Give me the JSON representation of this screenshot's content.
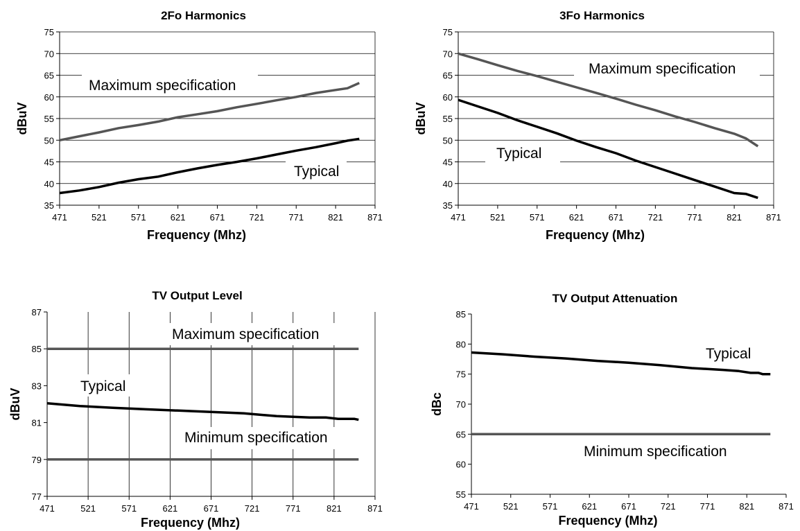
{
  "chart_data": [
    {
      "type": "line",
      "title": "2Fo Harmonics",
      "xlabel": "Frequency (Mhz)",
      "ylabel": "dBuV",
      "xlim": [
        471,
        871
      ],
      "ylim": [
        35,
        75
      ],
      "xticks": [
        471,
        521,
        571,
        621,
        671,
        721,
        771,
        821,
        871
      ],
      "yticks": [
        35,
        40,
        45,
        50,
        55,
        60,
        65,
        70,
        75
      ],
      "grid": "horizontal",
      "series": [
        {
          "name": "Maximum specification",
          "color": "#555555",
          "x": [
            471,
            496,
            521,
            546,
            571,
            596,
            621,
            646,
            671,
            696,
            721,
            746,
            771,
            796,
            821,
            836,
            851
          ],
          "y": [
            50.0,
            50.9,
            51.8,
            52.8,
            53.5,
            54.3,
            55.3,
            56.0,
            56.7,
            57.6,
            58.4,
            59.2,
            60.0,
            60.9,
            61.6,
            62.0,
            63.2
          ]
        },
        {
          "name": "Typical",
          "color": "#000000",
          "x": [
            471,
            496,
            521,
            546,
            571,
            596,
            621,
            646,
            671,
            696,
            721,
            746,
            771,
            796,
            821,
            836,
            851
          ],
          "y": [
            37.8,
            38.4,
            39.2,
            40.2,
            41.0,
            41.6,
            42.6,
            43.5,
            44.3,
            45.0,
            45.8,
            46.7,
            47.6,
            48.4,
            49.3,
            49.9,
            50.3
          ]
        }
      ]
    },
    {
      "type": "line",
      "title": "3Fo Harmonics",
      "xlabel": "Frequency (Mhz)",
      "ylabel": "dBuV",
      "xlim": [
        471,
        871
      ],
      "ylim": [
        35,
        75
      ],
      "xticks": [
        471,
        521,
        571,
        621,
        671,
        721,
        771,
        821,
        871
      ],
      "yticks": [
        35,
        40,
        45,
        50,
        55,
        60,
        65,
        70,
        75
      ],
      "grid": "horizontal",
      "series": [
        {
          "name": "Maximum specification",
          "color": "#555555",
          "x": [
            471,
            496,
            521,
            546,
            571,
            596,
            621,
            646,
            671,
            696,
            721,
            746,
            771,
            796,
            821,
            836,
            851
          ],
          "y": [
            70.0,
            68.7,
            67.3,
            66.0,
            64.8,
            63.5,
            62.2,
            60.9,
            59.6,
            58.2,
            56.9,
            55.5,
            54.2,
            52.8,
            51.5,
            50.4,
            48.6
          ]
        },
        {
          "name": "Typical",
          "color": "#000000",
          "x": [
            471,
            496,
            521,
            546,
            571,
            596,
            621,
            646,
            671,
            696,
            721,
            746,
            771,
            796,
            821,
            836,
            851
          ],
          "y": [
            59.3,
            57.8,
            56.3,
            54.6,
            53.1,
            51.6,
            49.9,
            48.4,
            47.0,
            45.3,
            43.8,
            42.3,
            40.8,
            39.3,
            37.8,
            37.6,
            36.7
          ]
        }
      ]
    },
    {
      "type": "line",
      "title": "TV Output Level",
      "xlabel": "Frequency (Mhz)",
      "ylabel": "dBuV",
      "xlim": [
        471,
        871
      ],
      "ylim": [
        77,
        87
      ],
      "xticks": [
        471,
        521,
        571,
        621,
        671,
        721,
        771,
        821,
        871
      ],
      "yticks": [
        77,
        79,
        81,
        83,
        85,
        87
      ],
      "grid": "vertical",
      "series": [
        {
          "name": "Maximum specification",
          "color": "#555555",
          "x": [
            471,
            851
          ],
          "y": [
            85.0,
            85.0
          ]
        },
        {
          "name": "Typical",
          "color": "#000000",
          "x": [
            471,
            511,
            551,
            591,
            631,
            671,
            711,
            751,
            791,
            811,
            826,
            846,
            851
          ],
          "y": [
            82.05,
            81.9,
            81.8,
            81.72,
            81.65,
            81.58,
            81.5,
            81.35,
            81.28,
            81.28,
            81.2,
            81.2,
            81.15
          ]
        },
        {
          "name": "Minimum specification",
          "color": "#555555",
          "x": [
            471,
            851
          ],
          "y": [
            79.0,
            79.0
          ]
        }
      ]
    },
    {
      "type": "line",
      "title": "TV Output Attenuation",
      "xlabel": "Frequency (Mhz)",
      "ylabel": "dBc",
      "xlim": [
        471,
        871
      ],
      "ylim": [
        55,
        85
      ],
      "xticks": [
        471,
        521,
        571,
        621,
        671,
        721,
        771,
        821,
        871
      ],
      "yticks": [
        55,
        60,
        65,
        70,
        75,
        80,
        85
      ],
      "grid": "none",
      "series": [
        {
          "name": "Typical",
          "color": "#000000",
          "x": [
            471,
            511,
            551,
            591,
            631,
            671,
            711,
            751,
            791,
            811,
            826,
            836,
            841,
            851
          ],
          "y": [
            78.6,
            78.3,
            77.9,
            77.6,
            77.2,
            76.9,
            76.5,
            76.0,
            75.7,
            75.5,
            75.2,
            75.2,
            75.0,
            75.0
          ]
        },
        {
          "name": "Minimum specification",
          "color": "#555555",
          "x": [
            471,
            851
          ],
          "y": [
            65.0,
            65.0
          ]
        }
      ]
    }
  ]
}
